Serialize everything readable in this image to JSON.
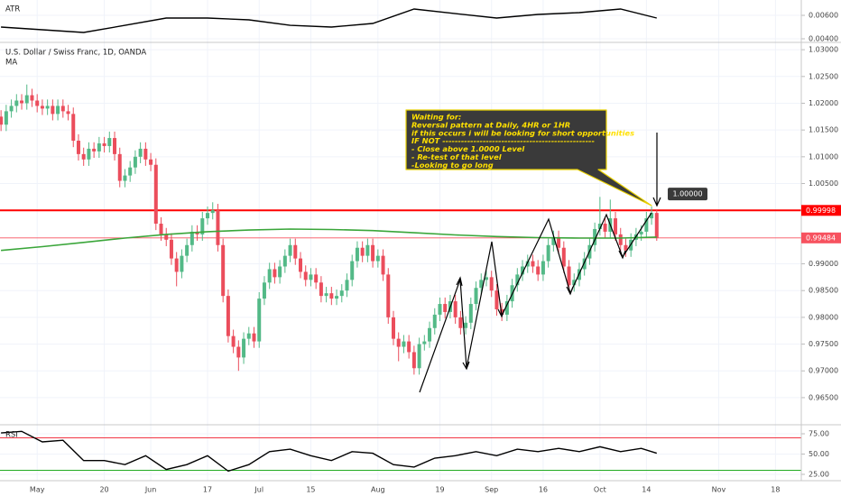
{
  "chart_data": [
    {
      "type": "line",
      "title": "ATR",
      "color": "#000000",
      "x": [
        0,
        8,
        16,
        24,
        32,
        40,
        48,
        56,
        64,
        72,
        80,
        88,
        96,
        104,
        112,
        120,
        127
      ],
      "values": [
        0.005,
        0.00477,
        0.00454,
        0.00515,
        0.00577,
        0.00577,
        0.00562,
        0.00515,
        0.005,
        0.00531,
        0.00654,
        0.00615,
        0.00577,
        0.00608,
        0.00623,
        0.00654,
        0.00577
      ],
      "ylim": [
        0.00377,
        0.00731
      ],
      "yticks": [
        {
          "value": 0.006,
          "label": "0.00600"
        },
        {
          "value": 0.004,
          "label": "0.00400"
        }
      ]
    },
    {
      "type": "candlestick",
      "title": "U.S. Dollar / Swiss Franc, 1D, OANDA",
      "up_color": "#53b987",
      "down_color": "#eb4d5c",
      "open": [
        1.0175,
        1.016,
        1.0185,
        1.0195,
        1.0205,
        1.02,
        1.0215,
        1.0205,
        1.0195,
        1.019,
        1.0195,
        1.018,
        1.0195,
        1.0185,
        1.018,
        1.013,
        1.0105,
        1.0095,
        1.0115,
        1.011,
        1.0125,
        1.012,
        1.0135,
        1.0105,
        1.0055,
        1.0065,
        1.008,
        1.01,
        1.0115,
        1.0095,
        1.0085,
        0.9975,
        0.9955,
        0.9945,
        0.991,
        0.9885,
        0.9915,
        0.9935,
        0.996,
        0.9955,
        0.9985,
        0.9995,
        1.0,
        0.9935,
        0.984,
        0.9765,
        0.9745,
        0.9725,
        0.976,
        0.977,
        0.9755,
        0.9835,
        0.9865,
        0.989,
        0.9875,
        0.9895,
        0.9915,
        0.9935,
        0.991,
        0.9885,
        0.987,
        0.988,
        0.9865,
        0.984,
        0.9845,
        0.9835,
        0.984,
        0.985,
        0.987,
        0.9905,
        0.993,
        0.9915,
        0.9935,
        0.9905,
        0.9915,
        0.988,
        0.98,
        0.976,
        0.9745,
        0.9755,
        0.9735,
        0.9705,
        0.975,
        0.9755,
        0.978,
        0.9805,
        0.9825,
        0.981,
        0.983,
        0.98,
        0.978,
        0.979,
        0.9825,
        0.9855,
        0.987,
        0.9875,
        0.985,
        0.9815,
        0.9805,
        0.983,
        0.986,
        0.988,
        0.9895,
        0.9905,
        0.9895,
        0.988,
        0.9905,
        0.9935,
        0.995,
        0.993,
        0.9895,
        0.986,
        0.987,
        0.989,
        0.991,
        0.9935,
        0.9965,
        0.9975,
        0.996,
        0.9985,
        0.9955,
        0.9935,
        0.9925,
        0.9945,
        0.9955,
        0.996,
        0.9985,
        0.9995
      ],
      "high": [
        1.0187,
        1.0197,
        1.0207,
        1.0217,
        1.0217,
        1.0235,
        1.0227,
        1.0217,
        1.0207,
        1.0207,
        1.0207,
        1.0207,
        1.0207,
        1.0197,
        1.0192,
        1.0142,
        1.0117,
        1.0127,
        1.0127,
        1.0137,
        1.0137,
        1.0147,
        1.0147,
        1.0117,
        1.0077,
        1.0092,
        1.0112,
        1.0127,
        1.0127,
        1.0107,
        1.0097,
        0.9987,
        0.9967,
        0.9957,
        0.9922,
        0.9927,
        0.9947,
        0.9972,
        0.9972,
        0.9997,
        1.0007,
        1.0015,
        1.0012,
        0.9947,
        0.9852,
        0.9777,
        0.9757,
        0.9772,
        0.9782,
        0.9782,
        0.9847,
        0.9877,
        0.9902,
        0.9902,
        0.9907,
        0.9927,
        0.9947,
        0.9947,
        0.9922,
        0.9897,
        0.9892,
        0.9892,
        0.9877,
        0.9857,
        0.9857,
        0.9852,
        0.9862,
        0.9882,
        0.9917,
        0.9942,
        0.9942,
        0.9947,
        0.9947,
        0.9927,
        0.9927,
        0.9892,
        0.9812,
        0.9772,
        0.9767,
        0.9767,
        0.9747,
        0.9762,
        0.9767,
        0.9792,
        0.9817,
        0.9837,
        0.9837,
        0.9842,
        0.9842,
        0.9812,
        0.9802,
        0.9837,
        0.9867,
        0.9882,
        0.9887,
        0.9887,
        0.9862,
        0.9827,
        0.9842,
        0.9872,
        0.9892,
        0.9907,
        0.9917,
        0.9917,
        0.9907,
        0.9917,
        0.9947,
        0.9962,
        0.9962,
        0.9942,
        0.9907,
        0.9882,
        0.9902,
        0.9922,
        0.9947,
        0.9977,
        1.0025,
        0.9987,
        1.002,
        0.9997,
        0.9967,
        0.9947,
        0.9957,
        0.9967,
        0.9972,
        0.9997,
        1.0007,
        1.0002
      ],
      "low": [
        1.0148,
        1.0148,
        1.0173,
        1.0183,
        1.0188,
        1.0188,
        1.0193,
        1.0183,
        1.0178,
        1.0178,
        1.0168,
        1.0168,
        1.0173,
        1.0168,
        1.0118,
        1.0093,
        1.0083,
        1.0083,
        1.0098,
        1.0098,
        1.0108,
        1.0108,
        1.0093,
        1.0043,
        1.0043,
        1.0053,
        1.0068,
        1.0088,
        1.0083,
        1.0073,
        0.9963,
        0.9943,
        0.9933,
        0.9898,
        0.9858,
        0.9873,
        0.9903,
        0.9923,
        0.9943,
        0.9943,
        0.9973,
        0.9983,
        0.9923,
        0.9828,
        0.9753,
        0.9733,
        0.97,
        0.9713,
        0.9748,
        0.9743,
        0.9743,
        0.9823,
        0.9853,
        0.9863,
        0.9863,
        0.9883,
        0.9903,
        0.9898,
        0.9873,
        0.9858,
        0.9858,
        0.9853,
        0.9828,
        0.9828,
        0.9823,
        0.9823,
        0.9828,
        0.9838,
        0.9858,
        0.9893,
        0.9903,
        0.9903,
        0.9893,
        0.9893,
        0.9868,
        0.9788,
        0.9748,
        0.9718,
        0.9733,
        0.9723,
        0.9693,
        0.9693,
        0.9738,
        0.9743,
        0.9768,
        0.9793,
        0.9798,
        0.9798,
        0.9788,
        0.9768,
        0.9768,
        0.9778,
        0.9813,
        0.9843,
        0.9858,
        0.9838,
        0.9803,
        0.9793,
        0.9793,
        0.9818,
        0.9848,
        0.9868,
        0.9883,
        0.9883,
        0.9868,
        0.9868,
        0.9893,
        0.9923,
        0.9918,
        0.9883,
        0.9848,
        0.9848,
        0.9858,
        0.9878,
        0.9898,
        0.9923,
        0.9953,
        0.9948,
        0.9948,
        0.9943,
        0.9923,
        0.9913,
        0.9913,
        0.9933,
        0.9943,
        0.9948,
        0.9973,
        0.9943
      ],
      "close": [
        1.016,
        1.0185,
        1.0195,
        1.0205,
        1.02,
        1.0215,
        1.0205,
        1.0195,
        1.019,
        1.0195,
        1.018,
        1.0195,
        1.0185,
        1.018,
        1.013,
        1.0105,
        1.0095,
        1.0115,
        1.011,
        1.0125,
        1.012,
        1.0135,
        1.0105,
        1.0055,
        1.0065,
        1.008,
        1.01,
        1.0115,
        1.0095,
        1.0085,
        0.9975,
        0.9955,
        0.9945,
        0.991,
        0.9885,
        0.9915,
        0.9935,
        0.996,
        0.9955,
        0.9985,
        0.9995,
        1.0,
        0.9935,
        0.984,
        0.9765,
        0.9745,
        0.9725,
        0.976,
        0.977,
        0.9755,
        0.9835,
        0.9865,
        0.989,
        0.9875,
        0.9895,
        0.9915,
        0.9935,
        0.991,
        0.9885,
        0.987,
        0.988,
        0.9865,
        0.984,
        0.9845,
        0.9835,
        0.984,
        0.985,
        0.987,
        0.9905,
        0.993,
        0.9915,
        0.9935,
        0.9905,
        0.9915,
        0.988,
        0.98,
        0.976,
        0.9745,
        0.9755,
        0.9735,
        0.9705,
        0.975,
        0.9755,
        0.978,
        0.9805,
        0.9825,
        0.981,
        0.983,
        0.98,
        0.978,
        0.979,
        0.9825,
        0.9855,
        0.987,
        0.9875,
        0.985,
        0.9815,
        0.9805,
        0.983,
        0.986,
        0.988,
        0.9895,
        0.9905,
        0.9895,
        0.988,
        0.9905,
        0.9935,
        0.995,
        0.993,
        0.9895,
        0.986,
        0.987,
        0.989,
        0.991,
        0.9935,
        0.9965,
        0.9975,
        0.996,
        0.9985,
        0.9955,
        0.9935,
        0.9925,
        0.9945,
        0.9955,
        0.996,
        0.9985,
        0.9995,
        0.9948
      ],
      "series": [
        {
          "name": "MA",
          "color": "#3aa63a",
          "x": [
            0,
            8,
            16,
            24,
            32,
            40,
            48,
            56,
            64,
            72,
            80,
            88,
            96,
            104,
            112,
            120,
            127
          ],
          "values": [
            0.9925,
            0.9932,
            0.994,
            0.9948,
            0.9955,
            0.996,
            0.9963,
            0.9965,
            0.9964,
            0.9962,
            0.9958,
            0.9954,
            0.9951,
            0.9949,
            0.9948,
            0.9948,
            0.995
          ]
        }
      ],
      "hlines": [
        {
          "value": 0.99998,
          "label": "0.99998",
          "color": "#ff0000"
        },
        {
          "value": 0.99484,
          "label": "0.99484",
          "color": "#f7525f"
        }
      ],
      "price_tag": {
        "value": 1.0,
        "label": "1.00000"
      },
      "annotation": [
        "Waiting for:",
        "Reversal pattern at Daily, 4HR or 1HR",
        "if this occurs i will be looking for short opportunities",
        "IF NOT -------------------------------------------------",
        "- Close above 1.0000 Level",
        "- Re-test of that level",
        "-Looking to go long"
      ],
      "xlim": [
        -0.2,
        155
      ],
      "xticks": [
        {
          "value": 7,
          "label": "May"
        },
        {
          "value": 20,
          "label": "20"
        },
        {
          "value": 29,
          "label": "Jun"
        },
        {
          "value": 40,
          "label": "17"
        },
        {
          "value": 50,
          "label": "Jul"
        },
        {
          "value": 60,
          "label": "15"
        },
        {
          "value": 73,
          "label": "Aug"
        },
        {
          "value": 85,
          "label": "19"
        },
        {
          "value": 95,
          "label": "Sep"
        },
        {
          "value": 105,
          "label": "16"
        },
        {
          "value": 116,
          "label": "Oct"
        },
        {
          "value": 125,
          "label": "14"
        },
        {
          "value": 139,
          "label": "Nov"
        },
        {
          "value": 150,
          "label": "18"
        }
      ],
      "ylim": [
        0.9601,
        1.0312
      ],
      "yticks": [
        {
          "value": 0.965,
          "label": "0.96500"
        },
        {
          "value": 0.97,
          "label": "0.97000"
        },
        {
          "value": 0.975,
          "label": "0.97500"
        },
        {
          "value": 0.98,
          "label": "0.98000"
        },
        {
          "value": 0.985,
          "label": "0.98500"
        },
        {
          "value": 0.99,
          "label": "0.99000"
        },
        {
          "value": 1.005,
          "label": "1.00500"
        },
        {
          "value": 1.01,
          "label": "1.01000"
        },
        {
          "value": 1.015,
          "label": "1.01500"
        },
        {
          "value": 1.02,
          "label": "1.02000"
        },
        {
          "value": 1.025,
          "label": "1.02500"
        },
        {
          "value": 1.03,
          "label": "1.03000"
        }
      ]
    },
    {
      "type": "line",
      "title": "RSI",
      "color": "#000000",
      "x": [
        0,
        4,
        8,
        12,
        16,
        20,
        24,
        28,
        32,
        36,
        40,
        44,
        48,
        52,
        56,
        60,
        64,
        68,
        72,
        76,
        80,
        84,
        88,
        92,
        96,
        100,
        104,
        108,
        112,
        116,
        120,
        124,
        127
      ],
      "values": [
        76,
        78,
        65,
        67,
        42,
        42,
        37,
        48,
        31,
        37,
        48,
        29,
        37,
        53,
        56,
        48,
        42,
        53,
        51,
        37,
        34,
        45,
        48,
        53,
        48,
        56,
        53,
        57,
        53,
        59,
        53,
        57,
        51
      ],
      "bands": [
        {
          "value": 70,
          "color": "#f23645"
        },
        {
          "value": 30,
          "color": "#22ab22"
        }
      ],
      "ylim": [
        18.3,
        85
      ],
      "yticks": [
        {
          "value": 75,
          "label": "75.00"
        },
        {
          "value": 50,
          "label": "50.00"
        },
        {
          "value": 25,
          "label": "25.00"
        }
      ]
    }
  ]
}
